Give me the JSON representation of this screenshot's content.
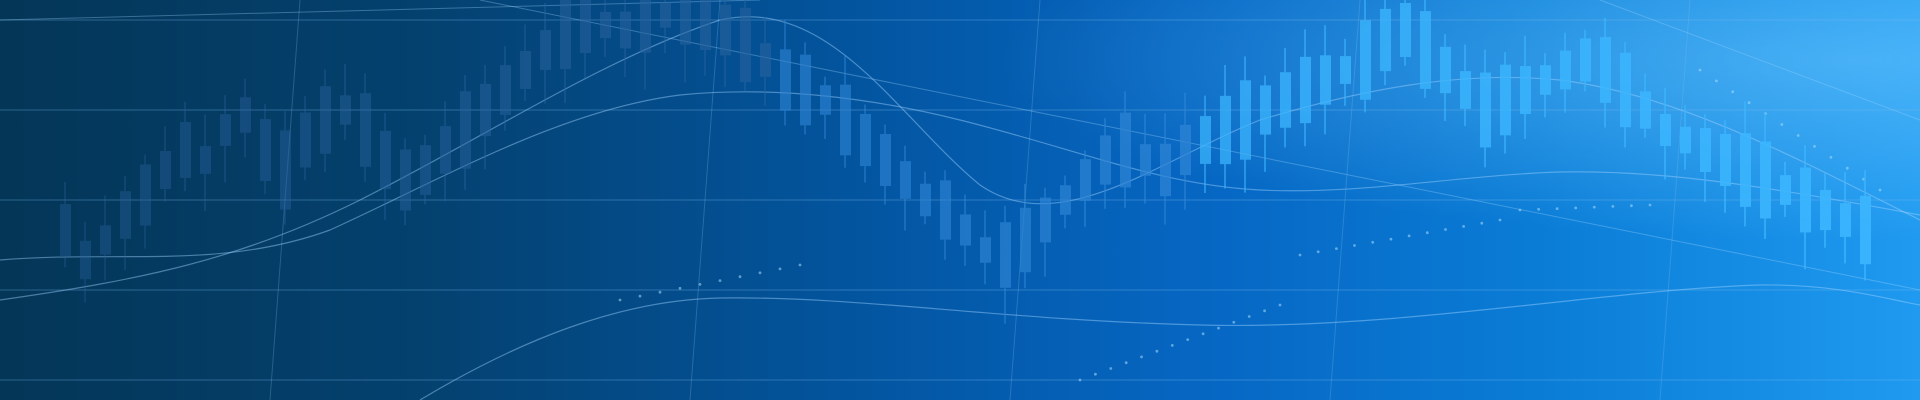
{
  "banner": {
    "theme": "candlestick-stock-chart-background",
    "colors": {
      "background_left": "#043657",
      "background_mid": "#0355a0",
      "background_right": "#1f9af0",
      "candle_dim": "#2d6fb0",
      "candle_bright": "#39b7ff",
      "grid_line": "#6fb2ea",
      "trend_line": "#9fd3ff"
    }
  }
}
